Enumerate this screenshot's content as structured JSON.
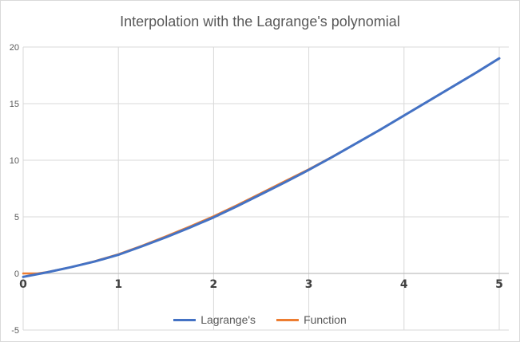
{
  "chart_data": {
    "type": "line",
    "title": "Interpolation with the Lagrange's polynomial",
    "xlabel": "",
    "ylabel": "",
    "xlim": [
      0,
      5
    ],
    "ylim": [
      -5,
      20
    ],
    "x_ticks": [
      "0",
      "1",
      "2",
      "3",
      "4",
      "5"
    ],
    "y_ticks": [
      "-5",
      "0",
      "5",
      "10",
      "15",
      "20"
    ],
    "grid": true,
    "legend": "bottom",
    "series": [
      {
        "name": "Lagrange's",
        "color": "#4472c4",
        "x": [
          0,
          0.25,
          0.5,
          0.75,
          1,
          1.25,
          1.5,
          1.75,
          2,
          2.25,
          2.5,
          2.75,
          3,
          3.25,
          3.5,
          3.75,
          4,
          4.25,
          4.5,
          4.75,
          5
        ],
        "y": [
          -0.3,
          0.1,
          0.55,
          1.05,
          1.65,
          2.4,
          3.2,
          4.05,
          4.95,
          5.95,
          7.0,
          8.05,
          9.15,
          10.3,
          11.5,
          12.7,
          13.95,
          15.2,
          16.45,
          17.7,
          19.0
        ]
      },
      {
        "name": "Function",
        "color": "#ed7d31",
        "x": [
          0,
          0.15,
          0.25,
          0.5,
          0.75,
          1,
          1.25,
          1.5,
          1.75,
          2,
          2.25,
          2.5,
          2.75,
          3,
          3.25,
          3.5,
          3.75,
          4,
          4.25,
          4.5,
          4.75,
          5
        ],
        "y": [
          0.0,
          0.0,
          0.12,
          0.55,
          1.08,
          1.7,
          2.45,
          3.28,
          4.15,
          5.05,
          6.05,
          7.1,
          8.15,
          9.2,
          10.33,
          11.5,
          12.7,
          13.95,
          15.2,
          16.45,
          17.7,
          19.0
        ]
      }
    ]
  }
}
